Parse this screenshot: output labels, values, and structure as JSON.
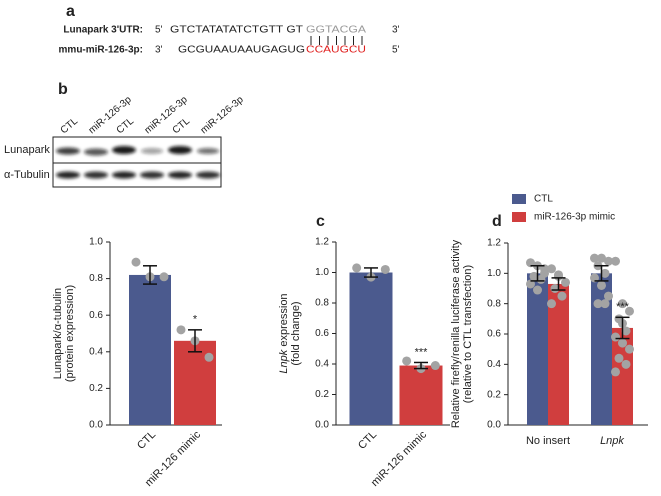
{
  "panels": [
    "a",
    "b",
    "c",
    "d"
  ],
  "alignment": {
    "rows": [
      {
        "label": "Lunapark 3'UTR:",
        "left": "5'",
        "sequence": "GTCTATATATCTGTT GT",
        "seed": "GGTACGA",
        "right": "3'",
        "seed_color": "#999999"
      },
      {
        "label": "mmu-miR-126-3p:",
        "left": "3'",
        "sequence": "GCGUAAUAAUGAGUG",
        "seed": "CCAUGCU",
        "right": "5'",
        "seed_color": "#e0201f"
      }
    ]
  },
  "blot": {
    "lanes": [
      "CTL",
      "miR-126-3p",
      "CTL",
      "miR-126-3p",
      "CTL",
      "miR-126-3p"
    ],
    "rows": [
      "Lunapark",
      "α-Tubulin"
    ]
  },
  "chart_data": [
    {
      "type": "bar",
      "ylabel": [
        [
          {
            "text": "Lunapark/α-tubulin"
          }
        ],
        [
          {
            "text": "(protein expression)"
          }
        ]
      ],
      "categories": [
        "CTL",
        "miR-126 mimic"
      ],
      "values": [
        0.82,
        0.46
      ],
      "errors": [
        0.05,
        0.06
      ],
      "points": [
        [
          0.89,
          0.81,
          0.81
        ],
        [
          0.52,
          0.46,
          0.37
        ]
      ],
      "colors": [
        "#4b5a8e",
        "#d03e3e"
      ],
      "point_color": "#a3a3a3",
      "significance": [
        null,
        "*"
      ],
      "ylim": [
        0,
        1.0
      ],
      "yticks": [
        {
          "value": 0,
          "label": "0.0"
        },
        0.2,
        0.4,
        0.6,
        0.8,
        {
          "value": 1.0,
          "label": "1.0"
        }
      ]
    },
    {
      "type": "bar",
      "ylabel": [
        [
          {
            "text": "Lnpk",
            "style": "italic"
          },
          {
            "text": " expression"
          }
        ],
        [
          {
            "text": "(fold change)"
          }
        ]
      ],
      "categories": [
        "CTL",
        "miR-126 mimic"
      ],
      "values": [
        1.0,
        0.39
      ],
      "errors": [
        0.03,
        0.02
      ],
      "points": [
        [
          1.03,
          0.97,
          1.02
        ],
        [
          0.42,
          0.37,
          0.39
        ]
      ],
      "colors": [
        "#4b5a8e",
        "#d03e3e"
      ],
      "point_color": "#a3a3a3",
      "significance": [
        null,
        "***"
      ],
      "ylim": [
        0,
        1.2
      ],
      "yticks": [
        {
          "value": 0,
          "label": "0.0"
        },
        0.2,
        0.4,
        0.6,
        0.8,
        {
          "value": 1.0,
          "label": "1.0"
        },
        1.2
      ]
    },
    {
      "type": "bar",
      "ylabel": [
        [
          {
            "text": "Relative firefly/renilla luciferase activity"
          }
        ],
        [
          {
            "text": "(relative to CTL transfection)"
          }
        ]
      ],
      "categories": [
        "No insert",
        "Lnpk"
      ],
      "category_style": [
        "normal",
        "italic"
      ],
      "legend": "top-left",
      "point_color": "#a3a3a3",
      "series": [
        {
          "name": "CTL",
          "color": "#4b5a8e",
          "values": [
            1.0,
            1.0
          ],
          "errors": [
            0.05,
            0.05
          ],
          "points": [
            [
              1.07,
              1.05,
              1.0,
              0.98,
              0.96,
              0.93,
              0.89,
              1.03
            ],
            [
              1.1,
              1.1,
              1.08,
              1.05,
              1.0,
              0.97,
              0.92,
              0.85,
              0.8,
              0.8
            ]
          ],
          "significance": [
            null,
            null
          ]
        },
        {
          "name": "miR-126-3p mimic",
          "color": "#d03e3e",
          "values": [
            0.93,
            0.64
          ],
          "errors": [
            0.04,
            0.07
          ],
          "points": [
            [
              1.03,
              0.98,
              0.94,
              0.9,
              0.85,
              0.8,
              0.99
            ],
            [
              1.08,
              0.8,
              0.75,
              0.7,
              0.62,
              0.58,
              0.54,
              0.5,
              0.44,
              0.4,
              0.35,
              0.67
            ]
          ],
          "significance": [
            null,
            "***"
          ]
        }
      ],
      "ylim": [
        0,
        1.2
      ],
      "yticks": [
        {
          "value": 0,
          "label": "0.0"
        },
        0.2,
        0.4,
        0.6,
        0.8,
        {
          "value": 1.0,
          "label": "1.0"
        },
        1.2
      ]
    }
  ]
}
